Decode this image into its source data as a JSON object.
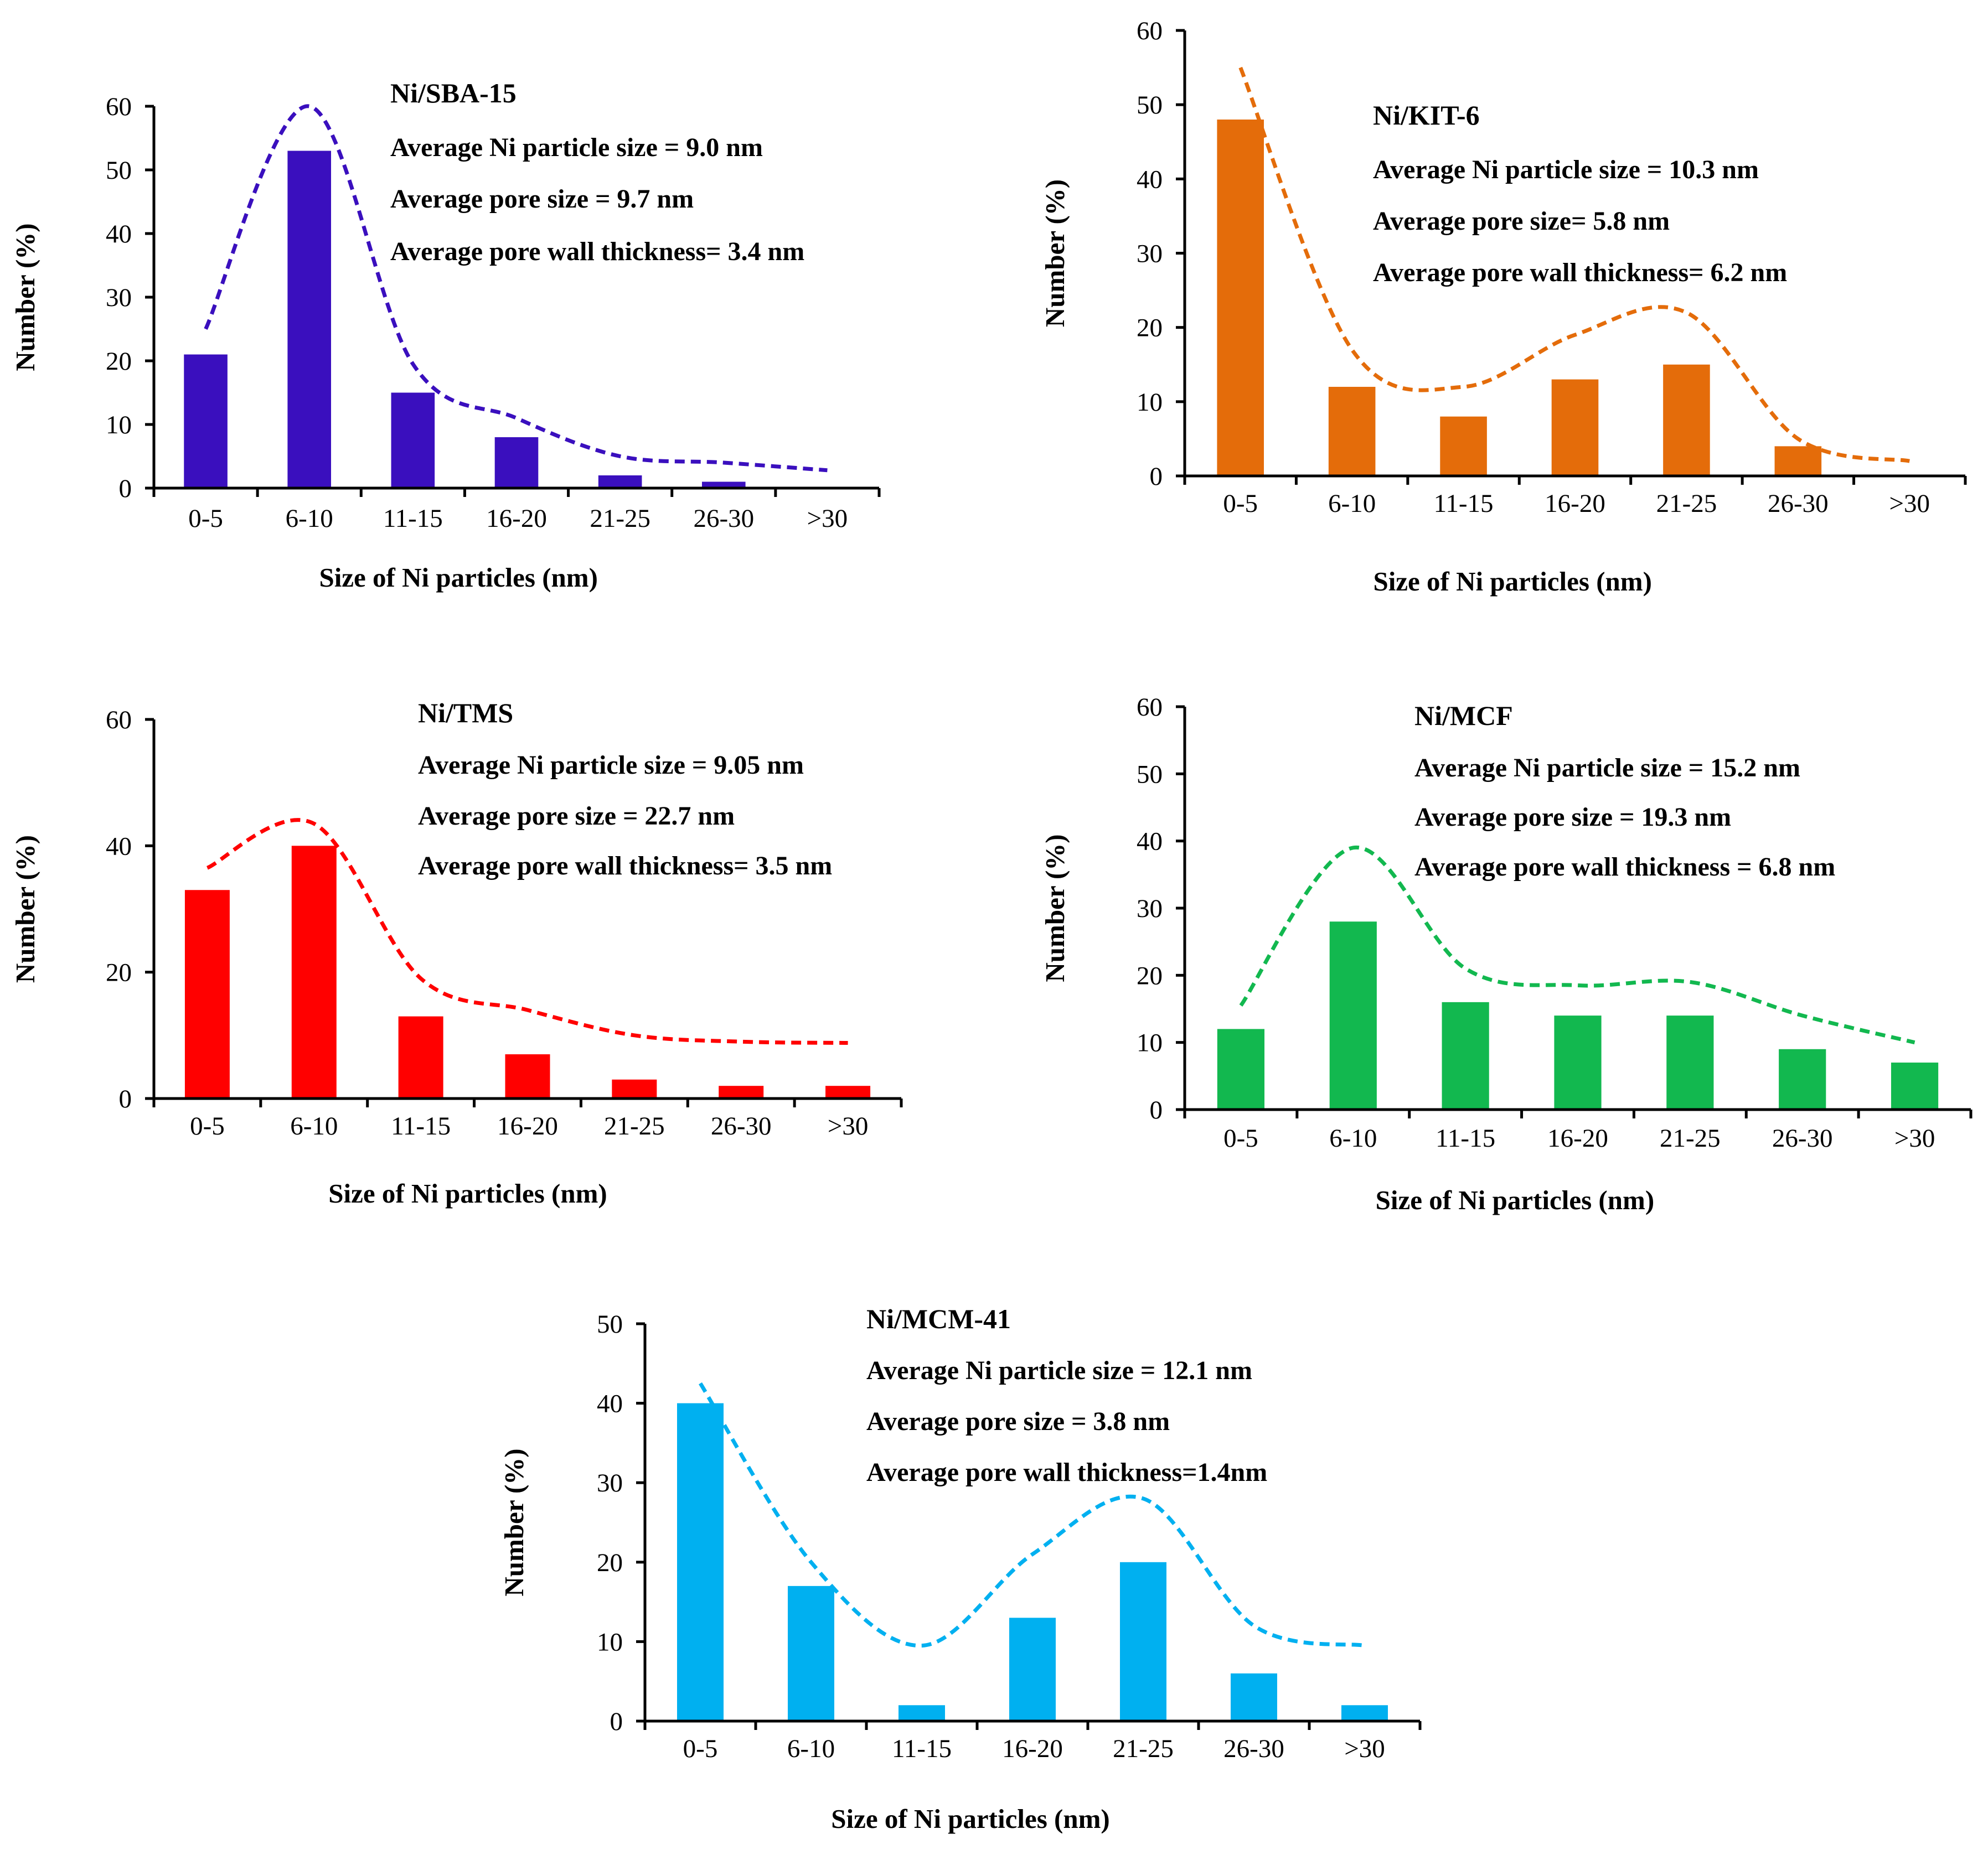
{
  "chart_data": [
    {
      "type": "bar",
      "title": "Ni/SBA-15",
      "annotations": [
        "Average Ni particle size = 9.0 nm",
        "Average pore size = 9.7 nm",
        "Average pore wall thickness= 3.4 nm"
      ],
      "xlabel": "Size of Ni particles (nm)",
      "ylabel": "Number (%)",
      "categories": [
        "0-5",
        "6-10",
        "11-15",
        "16-20",
        "21-25",
        "26-30",
        ">30"
      ],
      "values": [
        21,
        53,
        15,
        8,
        2,
        1,
        0
      ],
      "trend": [
        25,
        60,
        19.5,
        11,
        5,
        4,
        2.8
      ],
      "ylim": [
        0,
        60
      ],
      "yticks": [
        0,
        10,
        20,
        30,
        40,
        50,
        60
      ],
      "color": "#3a0fbe"
    },
    {
      "type": "bar",
      "title": "Ni/KIT-6",
      "annotations": [
        "Average Ni particle size = 10.3 nm",
        "Average pore size= 5.8 nm",
        "Average pore wall thickness= 6.2 nm"
      ],
      "xlabel": "Size of Ni particles (nm)",
      "ylabel": "Number (%)",
      "categories": [
        "0-5",
        "6-10",
        "11-15",
        "16-20",
        "21-25",
        "26-30",
        ">30"
      ],
      "values": [
        48,
        12,
        8,
        13,
        15,
        4,
        0
      ],
      "trend": [
        55,
        17,
        12,
        19,
        22,
        5,
        2
      ],
      "ylim": [
        0,
        60
      ],
      "yticks": [
        0,
        10,
        20,
        30,
        40,
        50,
        60
      ],
      "color": "#e46c0a"
    },
    {
      "type": "bar",
      "title": "Ni/TMS",
      "annotations": [
        "Average Ni particle size = 9.05 nm",
        "Average pore size = 22.7 nm",
        "Average pore wall thickness= 3.5 nm"
      ],
      "xlabel": "Size of Ni particles (nm)",
      "ylabel": "Number (%)",
      "categories": [
        "0-5",
        "6-10",
        "11-15",
        "16-20",
        "21-25",
        "26-30",
        ">30"
      ],
      "values": [
        33,
        40,
        13,
        7,
        3,
        2,
        2
      ],
      "trend": [
        36.5,
        43.5,
        19,
        14,
        10,
        9,
        8.8
      ],
      "ylim": [
        0,
        60
      ],
      "yticks": [
        0,
        20,
        40,
        60
      ],
      "color": "#ff0000"
    },
    {
      "type": "bar",
      "title": "Ni/MCF",
      "annotations": [
        "Average Ni particle size = 15.2 nm",
        "Average pore size = 19.3 nm",
        "Average pore wall thickness = 6.8 nm"
      ],
      "xlabel": "Size of Ni particles (nm)",
      "ylabel": "Number (%)",
      "categories": [
        "0-5",
        "6-10",
        "11-15",
        "16-20",
        "21-25",
        "26-30",
        ">30"
      ],
      "values": [
        12,
        28,
        16,
        14,
        14,
        9,
        7
      ],
      "trend": [
        15.5,
        39,
        21,
        18.5,
        19,
        14,
        10
      ],
      "ylim": [
        0,
        60
      ],
      "yticks": [
        0,
        10,
        20,
        30,
        40,
        50,
        60
      ],
      "color": "#12b84f"
    },
    {
      "type": "bar",
      "title": "Ni/MCM-41",
      "annotations": [
        "Average Ni particle size = 12.1 nm",
        "Average pore size = 3.8 nm",
        "Average pore wall thickness=1.4nm"
      ],
      "xlabel": "Size of Ni particles (nm)",
      "ylabel": "Number (%)",
      "categories": [
        "0-5",
        "6-10",
        "11-15",
        "16-20",
        "21-25",
        "26-30",
        ">30"
      ],
      "values": [
        40,
        17,
        2,
        13,
        20,
        6,
        2
      ],
      "trend": [
        42.5,
        20,
        9.5,
        21,
        28,
        12,
        9.5
      ],
      "ylim": [
        0,
        50
      ],
      "yticks": [
        0,
        10,
        20,
        30,
        40,
        50
      ],
      "color": "#00b0f0"
    }
  ]
}
